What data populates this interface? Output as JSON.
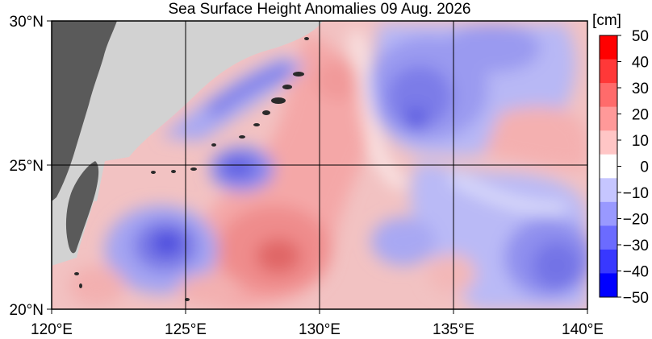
{
  "title": "Sea Surface Height Anomalies  09 Aug. 2026",
  "colorbar": {
    "unit": "[cm]",
    "ticks": [
      "50",
      "40",
      "30",
      "20",
      "10",
      "0",
      "−10",
      "−20",
      "−30",
      "−40",
      "−50"
    ],
    "bands": [
      "#ff0000",
      "#ff3838",
      "#ff6b6b",
      "#ff9999",
      "#ffc6c6",
      "#ffffff",
      "#c6c6ff",
      "#9999ff",
      "#6b6bff",
      "#3838ff",
      "#0000ff"
    ]
  },
  "axes": {
    "x_ticks": [
      "120°E",
      "125°E",
      "130°E",
      "135°E",
      "140°E"
    ],
    "y_ticks": [
      "30°N",
      "25°N",
      "20°N"
    ]
  },
  "map": {
    "land_color": "#5a5a5a",
    "masked_color": "#d2d2d2",
    "grid": true
  }
}
